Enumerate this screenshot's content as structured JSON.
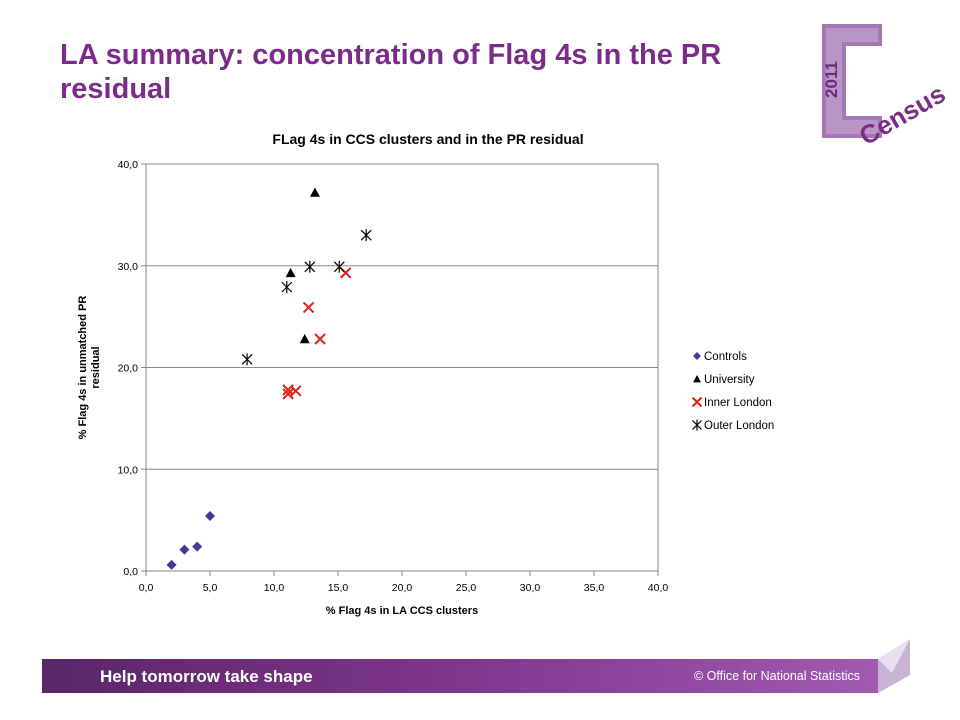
{
  "slide": {
    "title": "LA summary: concentration of Flag 4s in the PR residual",
    "footer_left": "Help tomorrow take shape",
    "footer_right": "© Office for National Statistics",
    "logo_year": "2011",
    "logo_word": "Census",
    "brand_color": "#7b2c8b"
  },
  "chart_data": {
    "type": "scatter",
    "title": "FLag 4s in CCS clusters and in the PR residual",
    "xlabel": "% Flag 4s in LA CCS clusters",
    "ylabel": "% Flag 4s in unmatched PR residual",
    "xlim": [
      0,
      40
    ],
    "ylim": [
      0,
      40
    ],
    "xticks": [
      "0,0",
      "5,0",
      "10,0",
      "15,0",
      "20,0",
      "25,0",
      "30,0",
      "35,0",
      "40,0"
    ],
    "yticks": [
      "0,0",
      "10,0",
      "20,0",
      "30,0",
      "40,0"
    ],
    "grid": "horizontal",
    "legend_position": "right",
    "series": [
      {
        "name": "Controls",
        "marker": "diamond",
        "color": "#3b3f94",
        "points": [
          [
            2.0,
            0.6
          ],
          [
            3.0,
            2.1
          ],
          [
            4.0,
            2.4
          ],
          [
            5.0,
            5.4
          ]
        ]
      },
      {
        "name": "University",
        "marker": "triangle",
        "color": "#000000",
        "points": [
          [
            13.2,
            37.2
          ],
          [
            11.3,
            29.3
          ],
          [
            12.4,
            22.8
          ]
        ]
      },
      {
        "name": "Inner London",
        "marker": "x",
        "color": "#e32119",
        "points": [
          [
            12.7,
            25.9
          ],
          [
            15.6,
            29.3
          ],
          [
            13.6,
            22.8
          ],
          [
            11.1,
            17.8
          ],
          [
            11.7,
            17.7
          ],
          [
            11.1,
            17.4
          ]
        ]
      },
      {
        "name": "Outer London",
        "marker": "asterisk",
        "color": "#000000",
        "points": [
          [
            7.9,
            20.8
          ],
          [
            11.0,
            27.9
          ],
          [
            12.8,
            29.9
          ],
          [
            15.1,
            29.9
          ],
          [
            17.2,
            33.0
          ]
        ]
      }
    ]
  }
}
